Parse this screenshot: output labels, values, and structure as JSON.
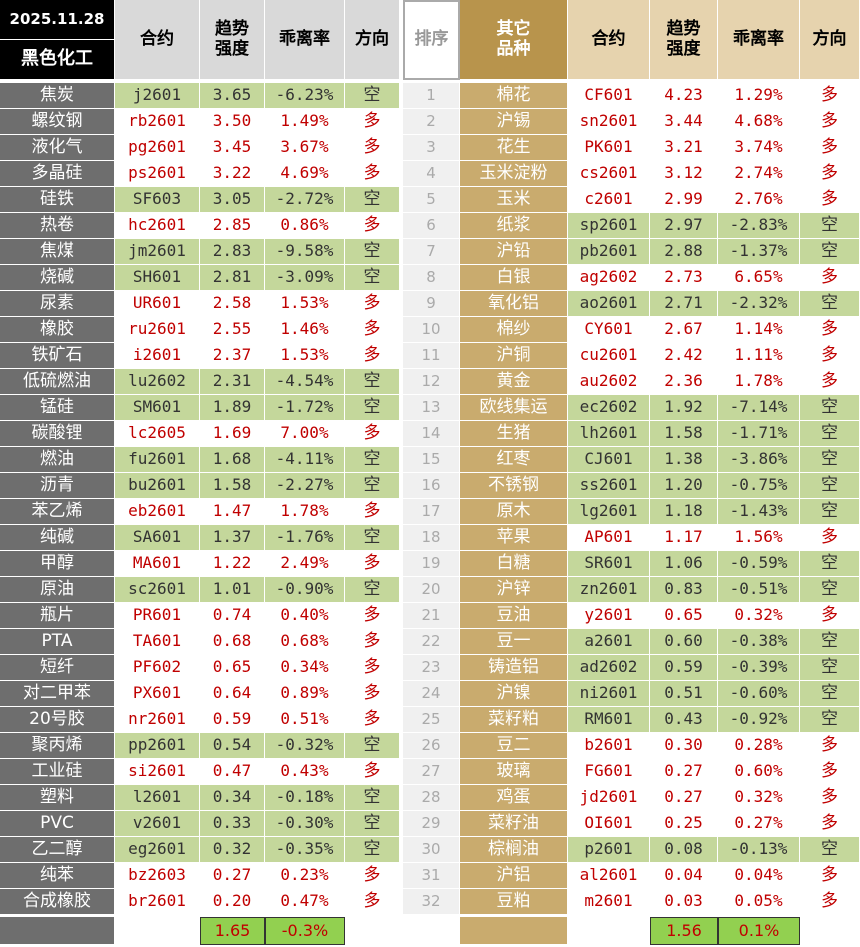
{
  "header": {
    "date": "2025.11.28",
    "sector": "黑色化工",
    "left_columns": [
      "合约",
      "趋势\n强度",
      "乖离率",
      "方向"
    ],
    "rank": "排序",
    "right_sector": "其它\n品种",
    "right_columns": [
      "合约",
      "趋势\n强度",
      "乖离率",
      "方向"
    ]
  },
  "table": {
    "rows": [
      {
        "rank": "1",
        "left": [
          "焦炭",
          "j2601",
          "3.65",
          "-6.23%",
          "空"
        ],
        "right": [
          "棉花",
          "CF601",
          "4.23",
          "1.29%",
          "多"
        ]
      },
      {
        "rank": "2",
        "left": [
          "螺纹钢",
          "rb2601",
          "3.50",
          "1.49%",
          "多"
        ],
        "right": [
          "沪锡",
          "sn2601",
          "3.44",
          "4.68%",
          "多"
        ]
      },
      {
        "rank": "3",
        "left": [
          "液化气",
          "pg2601",
          "3.45",
          "3.67%",
          "多"
        ],
        "right": [
          "花生",
          "PK601",
          "3.21",
          "3.74%",
          "多"
        ]
      },
      {
        "rank": "4",
        "left": [
          "多晶硅",
          "ps2601",
          "3.22",
          "4.69%",
          "多"
        ],
        "right": [
          "玉米淀粉",
          "cs2601",
          "3.12",
          "2.74%",
          "多"
        ]
      },
      {
        "rank": "5",
        "left": [
          "硅铁",
          "SF603",
          "3.05",
          "-2.72%",
          "空"
        ],
        "right": [
          "玉米",
          "c2601",
          "2.99",
          "2.76%",
          "多"
        ]
      },
      {
        "rank": "6",
        "left": [
          "热卷",
          "hc2601",
          "2.85",
          "0.86%",
          "多"
        ],
        "right": [
          "纸浆",
          "sp2601",
          "2.97",
          "-2.83%",
          "空"
        ]
      },
      {
        "rank": "7",
        "left": [
          "焦煤",
          "jm2601",
          "2.83",
          "-9.58%",
          "空"
        ],
        "right": [
          "沪铅",
          "pb2601",
          "2.88",
          "-1.37%",
          "空"
        ]
      },
      {
        "rank": "8",
        "left": [
          "烧碱",
          "SH601",
          "2.81",
          "-3.09%",
          "空"
        ],
        "right": [
          "白银",
          "ag2602",
          "2.73",
          "6.65%",
          "多"
        ]
      },
      {
        "rank": "9",
        "left": [
          "尿素",
          "UR601",
          "2.58",
          "1.53%",
          "多"
        ],
        "right": [
          "氧化铝",
          "ao2601",
          "2.71",
          "-2.32%",
          "空"
        ]
      },
      {
        "rank": "10",
        "left": [
          "橡胶",
          "ru2601",
          "2.55",
          "1.46%",
          "多"
        ],
        "right": [
          "棉纱",
          "CY601",
          "2.67",
          "1.14%",
          "多"
        ]
      },
      {
        "rank": "11",
        "left": [
          "铁矿石",
          "i2601",
          "2.37",
          "1.53%",
          "多"
        ],
        "right": [
          "沪铜",
          "cu2601",
          "2.42",
          "1.11%",
          "多"
        ]
      },
      {
        "rank": "12",
        "left": [
          "低硫燃油",
          "lu2602",
          "2.31",
          "-4.54%",
          "空"
        ],
        "right": [
          "黄金",
          "au2602",
          "2.36",
          "1.78%",
          "多"
        ]
      },
      {
        "rank": "13",
        "left": [
          "锰硅",
          "SM601",
          "1.89",
          "-1.72%",
          "空"
        ],
        "right": [
          "欧线集运",
          "ec2602",
          "1.92",
          "-7.14%",
          "空"
        ]
      },
      {
        "rank": "14",
        "left": [
          "碳酸锂",
          "lc2605",
          "1.69",
          "7.00%",
          "多"
        ],
        "right": [
          "生猪",
          "lh2601",
          "1.58",
          "-1.71%",
          "空"
        ]
      },
      {
        "rank": "15",
        "left": [
          "燃油",
          "fu2601",
          "1.68",
          "-4.11%",
          "空"
        ],
        "right": [
          "红枣",
          "CJ601",
          "1.38",
          "-3.86%",
          "空"
        ]
      },
      {
        "rank": "16",
        "left": [
          "沥青",
          "bu2601",
          "1.58",
          "-2.27%",
          "空"
        ],
        "right": [
          "不锈钢",
          "ss2601",
          "1.20",
          "-0.75%",
          "空"
        ]
      },
      {
        "rank": "17",
        "left": [
          "苯乙烯",
          "eb2601",
          "1.47",
          "1.78%",
          "多"
        ],
        "right": [
          "原木",
          "lg2601",
          "1.18",
          "-1.43%",
          "空"
        ]
      },
      {
        "rank": "18",
        "left": [
          "纯碱",
          "SA601",
          "1.37",
          "-1.76%",
          "空"
        ],
        "right": [
          "苹果",
          "AP601",
          "1.17",
          "1.56%",
          "多"
        ]
      },
      {
        "rank": "19",
        "left": [
          "甲醇",
          "MA601",
          "1.22",
          "2.49%",
          "多"
        ],
        "right": [
          "白糖",
          "SR601",
          "1.06",
          "-0.59%",
          "空"
        ]
      },
      {
        "rank": "20",
        "left": [
          "原油",
          "sc2601",
          "1.01",
          "-0.90%",
          "空"
        ],
        "right": [
          "沪锌",
          "zn2601",
          "0.83",
          "-0.51%",
          "空"
        ]
      },
      {
        "rank": "21",
        "left": [
          "瓶片",
          "PR601",
          "0.74",
          "0.40%",
          "多"
        ],
        "right": [
          "豆油",
          "y2601",
          "0.65",
          "0.32%",
          "多"
        ]
      },
      {
        "rank": "22",
        "left": [
          "PTA",
          "TA601",
          "0.68",
          "0.68%",
          "多"
        ],
        "right": [
          "豆一",
          "a2601",
          "0.60",
          "-0.38%",
          "空"
        ]
      },
      {
        "rank": "23",
        "left": [
          "短纤",
          "PF602",
          "0.65",
          "0.34%",
          "多"
        ],
        "right": [
          "铸造铝",
          "ad2602",
          "0.59",
          "-0.39%",
          "空"
        ]
      },
      {
        "rank": "24",
        "left": [
          "对二甲苯",
          "PX601",
          "0.64",
          "0.89%",
          "多"
        ],
        "right": [
          "沪镍",
          "ni2601",
          "0.51",
          "-0.60%",
          "空"
        ]
      },
      {
        "rank": "25",
        "left": [
          "20号胶",
          "nr2601",
          "0.59",
          "0.51%",
          "多"
        ],
        "right": [
          "菜籽粕",
          "RM601",
          "0.43",
          "-0.92%",
          "空"
        ]
      },
      {
        "rank": "26",
        "left": [
          "聚丙烯",
          "pp2601",
          "0.54",
          "-0.32%",
          "空"
        ],
        "right": [
          "豆二",
          "b2601",
          "0.30",
          "0.28%",
          "多"
        ]
      },
      {
        "rank": "27",
        "left": [
          "工业硅",
          "si2601",
          "0.47",
          "0.43%",
          "多"
        ],
        "right": [
          "玻璃",
          "FG601",
          "0.27",
          "0.60%",
          "多"
        ]
      },
      {
        "rank": "28",
        "left": [
          "塑料",
          "l2601",
          "0.34",
          "-0.18%",
          "空"
        ],
        "right": [
          "鸡蛋",
          "jd2601",
          "0.27",
          "0.32%",
          "多"
        ]
      },
      {
        "rank": "29",
        "left": [
          "PVC",
          "v2601",
          "0.33",
          "-0.30%",
          "空"
        ],
        "right": [
          "菜籽油",
          "OI601",
          "0.25",
          "0.27%",
          "多"
        ]
      },
      {
        "rank": "30",
        "left": [
          "乙二醇",
          "eg2601",
          "0.32",
          "-0.35%",
          "空"
        ],
        "right": [
          "棕榈油",
          "p2601",
          "0.08",
          "-0.13%",
          "空"
        ]
      },
      {
        "rank": "31",
        "left": [
          "纯苯",
          "bz2603",
          "0.27",
          "0.23%",
          "多"
        ],
        "right": [
          "沪铝",
          "al2601",
          "0.04",
          "0.04%",
          "多"
        ]
      },
      {
        "rank": "32",
        "left": [
          "合成橡胶",
          "br2601",
          "0.20",
          "0.47%",
          "多"
        ],
        "right": [
          "豆粕",
          "m2601",
          "0.03",
          "0.05%",
          "多"
        ]
      }
    ],
    "footer": {
      "left": [
        "1.65",
        "-0.3%"
      ],
      "right": [
        "1.56",
        "0.1%"
      ]
    }
  }
}
